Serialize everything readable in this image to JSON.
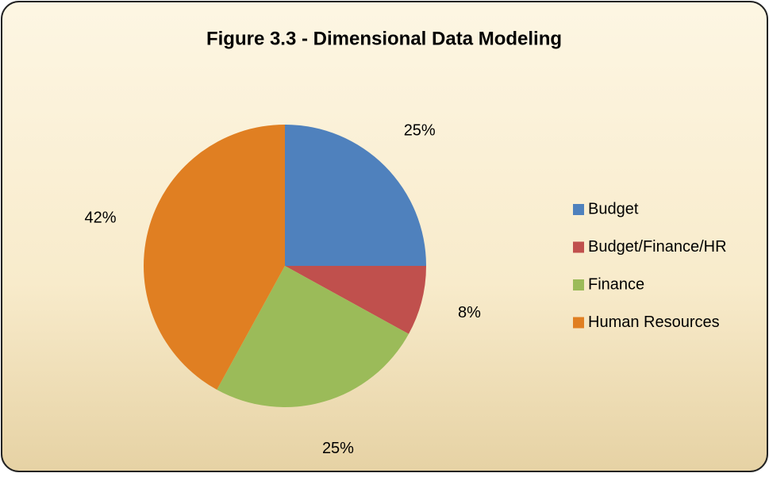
{
  "chart_data": {
    "type": "pie",
    "title": "Figure 3.3 - Dimensional Data Modeling",
    "categories": [
      "Budget",
      "Budget/Finance/HR",
      "Finance",
      "Human Resources"
    ],
    "values": [
      25,
      8,
      25,
      42
    ],
    "value_labels": [
      "25%",
      "8%",
      "25%",
      "42%"
    ],
    "colors": [
      "#4f81bd",
      "#c0504d",
      "#9bbb59",
      "#e07f22"
    ],
    "legend": "right"
  }
}
